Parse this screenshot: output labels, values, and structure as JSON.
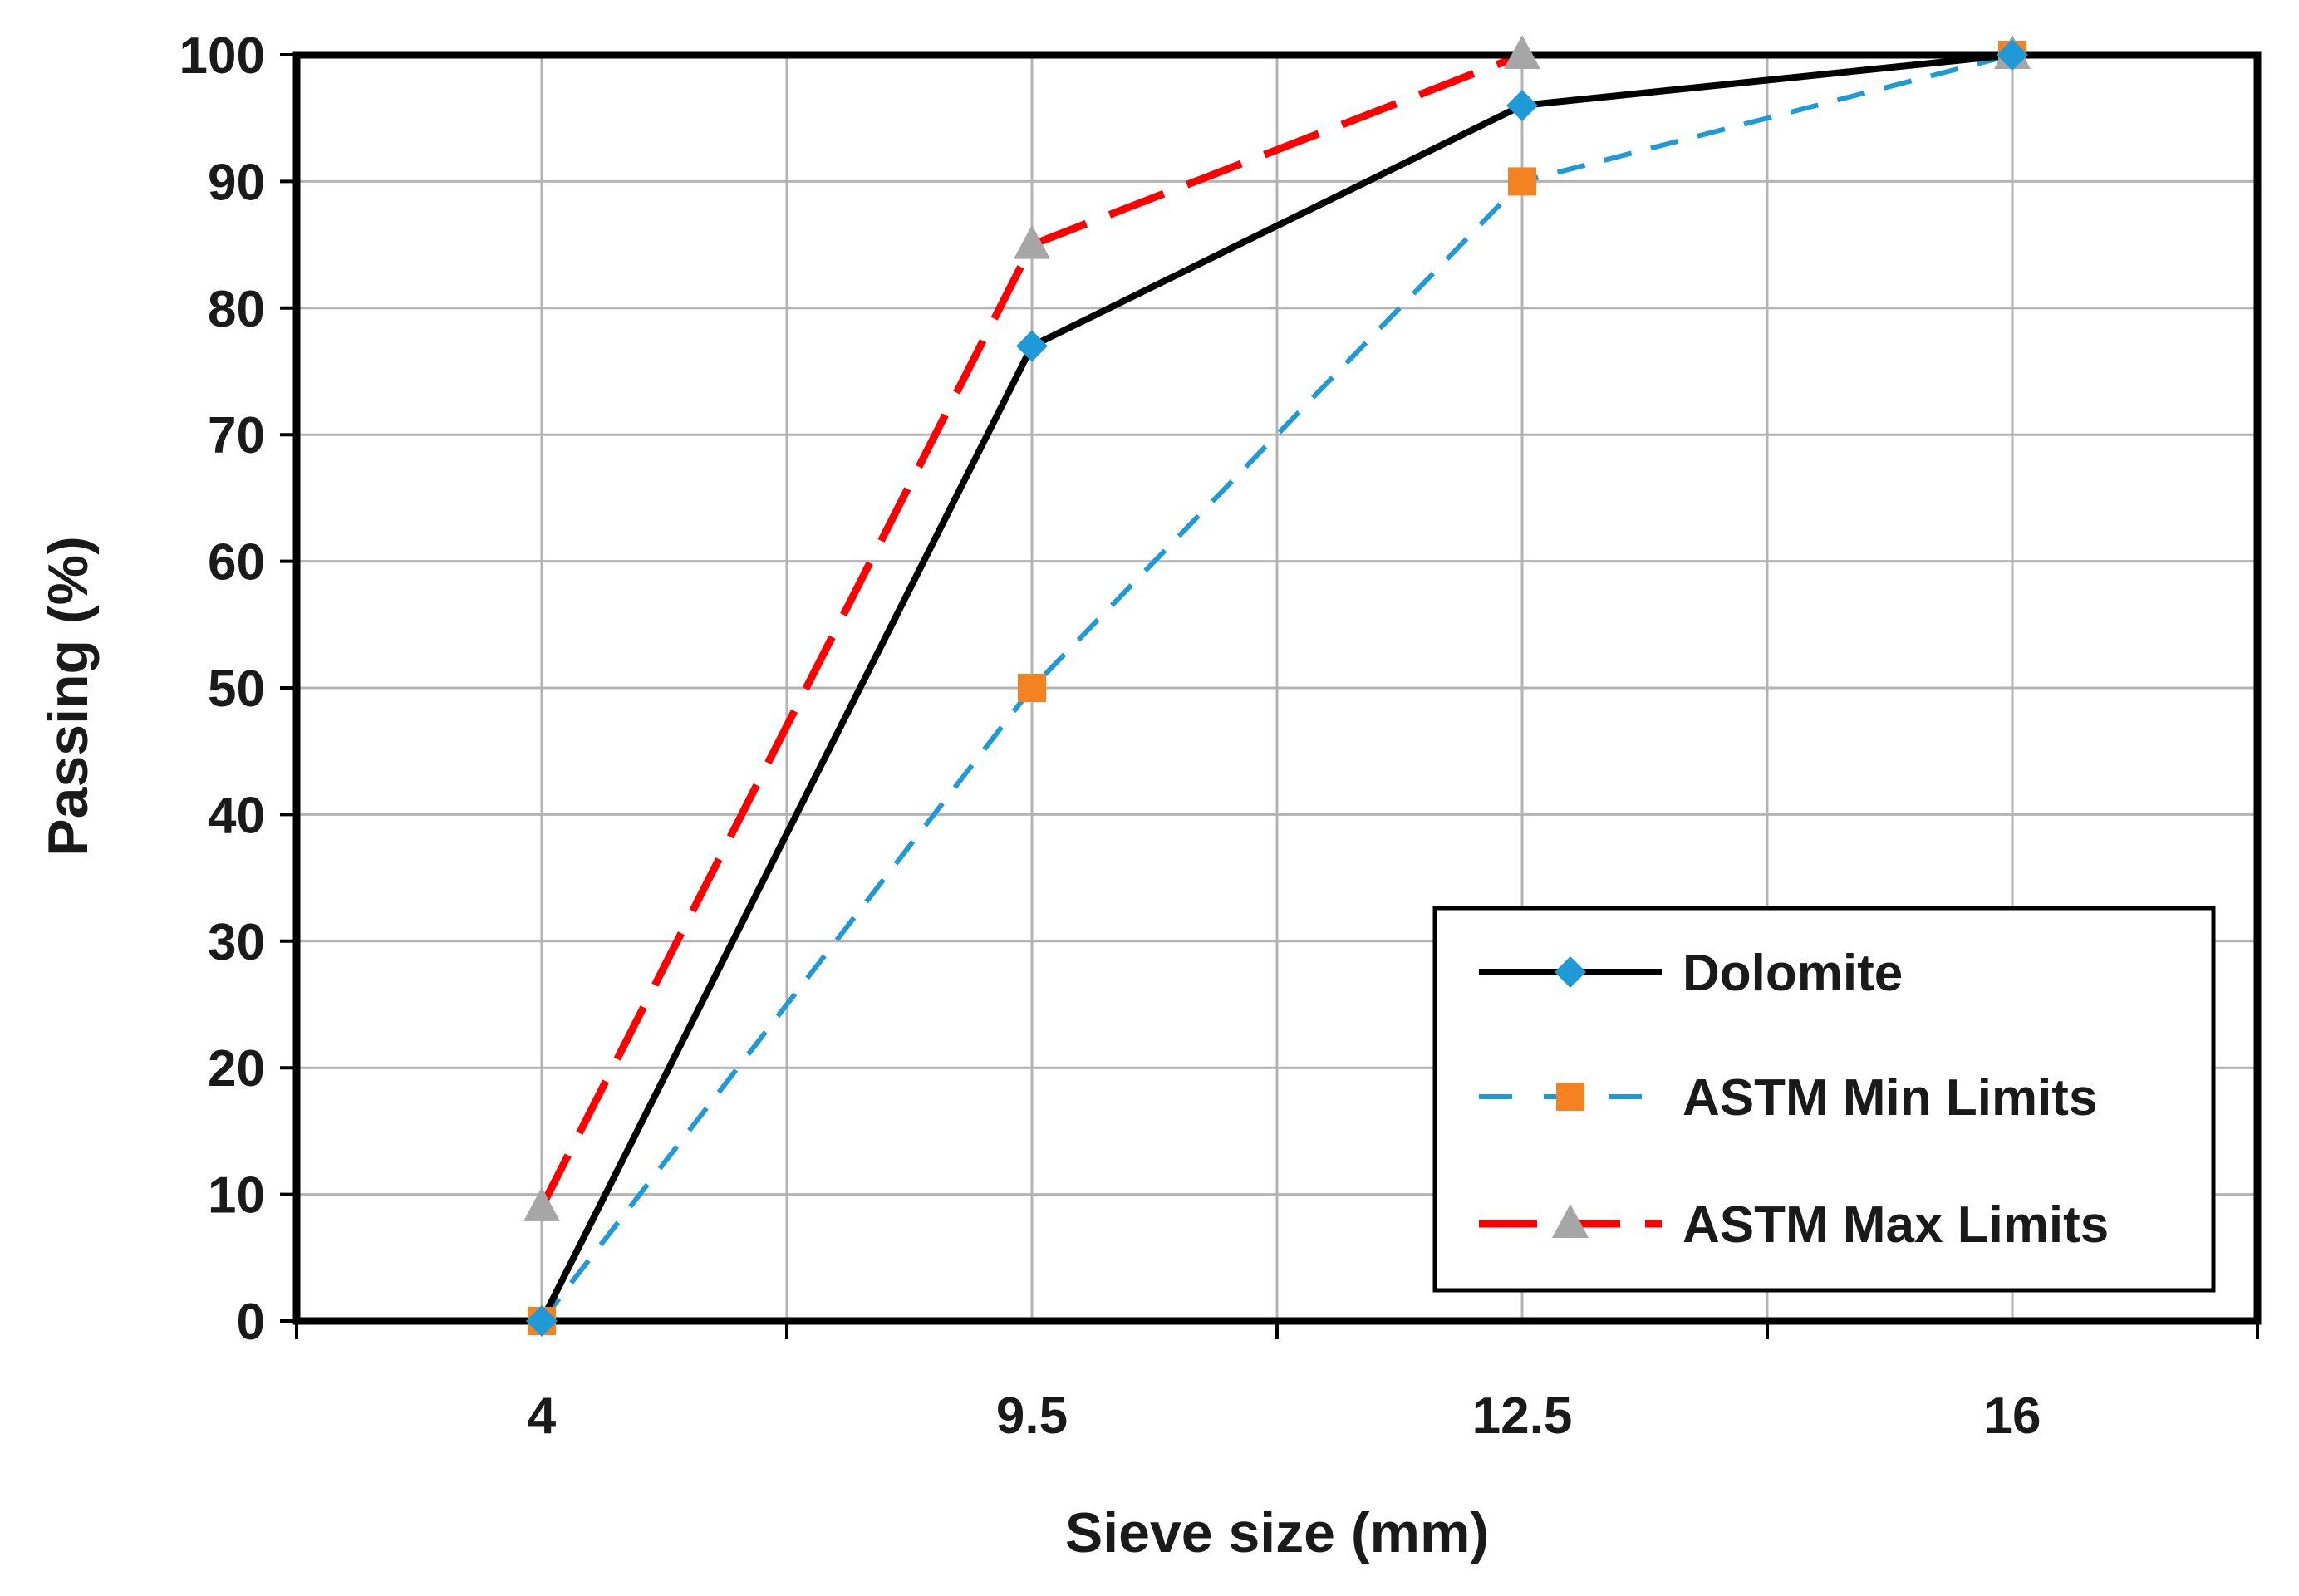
{
  "chart_data": {
    "type": "line",
    "title": "",
    "xlabel": "Sieve size (mm)",
    "ylabel": "Passing (%)",
    "categories": [
      "4",
      "9.5",
      "12.5",
      "16"
    ],
    "ylim": [
      0,
      100
    ],
    "yticks": [
      "0",
      "10",
      "20",
      "30",
      "40",
      "50",
      "60",
      "70",
      "80",
      "90",
      "100"
    ],
    "grid": true,
    "legend_position": "bottom-right",
    "series": [
      {
        "name": "Dolomite",
        "values": [
          0,
          77,
          96,
          100
        ],
        "line_color": "#000000",
        "marker": "diamond",
        "marker_color": "#1f9ad6",
        "dash": "solid"
      },
      {
        "name": "ASTM Min Limits",
        "values": [
          0,
          50,
          90,
          100
        ],
        "line_color": "#1f9ad6",
        "marker": "square",
        "marker_color": "#f58220",
        "dash": "short-dash"
      },
      {
        "name": "ASTM Max Limits",
        "values": [
          9,
          85,
          100,
          100
        ],
        "line_color": "#ff0000",
        "marker": "triangle",
        "marker_color": "#a6a6a6",
        "dash": "long-dash"
      }
    ]
  }
}
